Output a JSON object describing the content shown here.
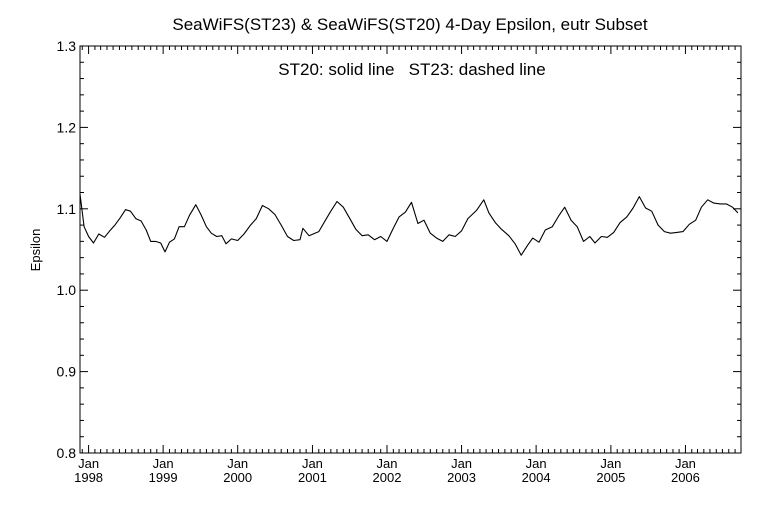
{
  "chart_data": {
    "type": "line",
    "title": "SeaWiFS(ST23) & SeaWiFS(ST20) 4-Day Epsilon, eutr Subset",
    "annotation": "ST20: solid line   ST23: dashed line",
    "xlabel": "",
    "ylabel": "Epsilon",
    "ylim": [
      0.8,
      1.3
    ],
    "yticks": [
      "0.8",
      "0.9",
      "1.0",
      "1.1",
      "1.2",
      "1.3"
    ],
    "xlim": [
      "1997-11-20",
      "2006-09-30"
    ],
    "xticks": [
      {
        "month": "Jan",
        "year": "1998",
        "date": "1998-01-01"
      },
      {
        "month": "Jan",
        "year": "1999",
        "date": "1999-01-01"
      },
      {
        "month": "Jan",
        "year": "2000",
        "date": "2000-01-01"
      },
      {
        "month": "Jan",
        "year": "2001",
        "date": "2001-01-01"
      },
      {
        "month": "Jan",
        "year": "2002",
        "date": "2002-01-01"
      },
      {
        "month": "Jan",
        "year": "2003",
        "date": "2003-01-01"
      },
      {
        "month": "Jan",
        "year": "2004",
        "date": "2004-01-01"
      },
      {
        "month": "Jan",
        "year": "2005",
        "date": "2005-01-01"
      },
      {
        "month": "Jan",
        "year": "2006",
        "date": "2006-01-01"
      }
    ],
    "grid": false,
    "series": [
      {
        "name": "ST20",
        "style": "solid",
        "points": [
          [
            "1997-11-20",
            1.118
          ],
          [
            "1997-12-10",
            1.078
          ],
          [
            "1998-01-01",
            1.066
          ],
          [
            "1998-01-25",
            1.058
          ],
          [
            "1998-02-20",
            1.069
          ],
          [
            "1998-03-20",
            1.065
          ],
          [
            "1998-04-15",
            1.073
          ],
          [
            "1998-05-10",
            1.08
          ],
          [
            "1998-06-05",
            1.089
          ],
          [
            "1998-07-01",
            1.099
          ],
          [
            "1998-07-25",
            1.097
          ],
          [
            "1998-08-20",
            1.088
          ],
          [
            "1998-09-15",
            1.085
          ],
          [
            "1998-10-10",
            1.074
          ],
          [
            "1998-11-01",
            1.06
          ],
          [
            "1998-11-25",
            1.06
          ],
          [
            "1998-12-20",
            1.058
          ],
          [
            "1999-01-10",
            1.047
          ],
          [
            "1999-02-01",
            1.059
          ],
          [
            "1999-02-25",
            1.063
          ],
          [
            "1999-03-20",
            1.078
          ],
          [
            "1999-04-15",
            1.078
          ],
          [
            "1999-05-10",
            1.092
          ],
          [
            "1999-06-10",
            1.105
          ],
          [
            "1999-07-05",
            1.093
          ],
          [
            "1999-08-01",
            1.078
          ],
          [
            "1999-08-25",
            1.07
          ],
          [
            "1999-09-20",
            1.066
          ],
          [
            "1999-10-15",
            1.067
          ],
          [
            "1999-11-05",
            1.057
          ],
          [
            "1999-12-01",
            1.063
          ],
          [
            "2000-01-01",
            1.061
          ],
          [
            "2000-02-01",
            1.069
          ],
          [
            "2000-03-01",
            1.079
          ],
          [
            "2000-04-01",
            1.088
          ],
          [
            "2000-05-01",
            1.104
          ],
          [
            "2000-06-01",
            1.1
          ],
          [
            "2000-07-01",
            1.093
          ],
          [
            "2000-08-01",
            1.08
          ],
          [
            "2000-09-01",
            1.066
          ],
          [
            "2000-10-01",
            1.061
          ],
          [
            "2000-11-01",
            1.062
          ],
          [
            "2000-11-15",
            1.076
          ],
          [
            "2000-12-15",
            1.067
          ],
          [
            "2001-02-01",
            1.072
          ],
          [
            "2001-03-01",
            1.084
          ],
          [
            "2001-04-01",
            1.097
          ],
          [
            "2001-05-01",
            1.109
          ],
          [
            "2001-06-01",
            1.102
          ],
          [
            "2001-07-01",
            1.089
          ],
          [
            "2001-08-01",
            1.075
          ],
          [
            "2001-09-01",
            1.067
          ],
          [
            "2001-10-01",
            1.068
          ],
          [
            "2001-11-01",
            1.062
          ],
          [
            "2001-12-01",
            1.066
          ],
          [
            "2002-01-01",
            1.06
          ],
          [
            "2002-02-01",
            1.076
          ],
          [
            "2002-03-01",
            1.09
          ],
          [
            "2002-04-01",
            1.096
          ],
          [
            "2002-05-01",
            1.108
          ],
          [
            "2002-06-01",
            1.082
          ],
          [
            "2002-07-01",
            1.086
          ],
          [
            "2002-08-01",
            1.07
          ],
          [
            "2002-09-01",
            1.064
          ],
          [
            "2002-10-01",
            1.06
          ],
          [
            "2002-11-01",
            1.068
          ],
          [
            "2002-12-01",
            1.066
          ],
          [
            "2003-01-01",
            1.073
          ],
          [
            "2003-02-01",
            1.088
          ],
          [
            "2003-03-15",
            1.098
          ],
          [
            "2003-04-20",
            1.111
          ],
          [
            "2003-05-15",
            1.095
          ],
          [
            "2003-06-15",
            1.083
          ],
          [
            "2003-07-15",
            1.075
          ],
          [
            "2003-08-20",
            1.067
          ],
          [
            "2003-09-20",
            1.057
          ],
          [
            "2003-10-20",
            1.043
          ],
          [
            "2003-11-20",
            1.055
          ],
          [
            "2003-12-15",
            1.064
          ],
          [
            "2004-01-15",
            1.059
          ],
          [
            "2004-02-15",
            1.074
          ],
          [
            "2004-03-20",
            1.078
          ],
          [
            "2004-04-20",
            1.091
          ],
          [
            "2004-05-20",
            1.102
          ],
          [
            "2004-06-20",
            1.086
          ],
          [
            "2004-07-20",
            1.078
          ],
          [
            "2004-08-20",
            1.06
          ],
          [
            "2004-09-20",
            1.066
          ],
          [
            "2004-10-15",
            1.058
          ],
          [
            "2004-11-15",
            1.066
          ],
          [
            "2004-12-15",
            1.065
          ],
          [
            "2005-01-15",
            1.071
          ],
          [
            "2005-02-15",
            1.083
          ],
          [
            "2005-03-20",
            1.09
          ],
          [
            "2005-04-20",
            1.101
          ],
          [
            "2005-05-20",
            1.115
          ],
          [
            "2005-06-20",
            1.101
          ],
          [
            "2005-07-20",
            1.097
          ],
          [
            "2005-08-20",
            1.08
          ],
          [
            "2005-09-20",
            1.072
          ],
          [
            "2005-10-20",
            1.07
          ],
          [
            "2005-11-20",
            1.071
          ],
          [
            "2005-12-20",
            1.072
          ],
          [
            "2006-01-20",
            1.081
          ],
          [
            "2006-02-20",
            1.086
          ],
          [
            "2006-03-20",
            1.102
          ],
          [
            "2006-04-20",
            1.111
          ],
          [
            "2006-05-20",
            1.107
          ],
          [
            "2006-06-20",
            1.106
          ],
          [
            "2006-07-20",
            1.106
          ],
          [
            "2006-08-20",
            1.102
          ],
          [
            "2006-09-15",
            1.095
          ]
        ]
      }
    ]
  }
}
